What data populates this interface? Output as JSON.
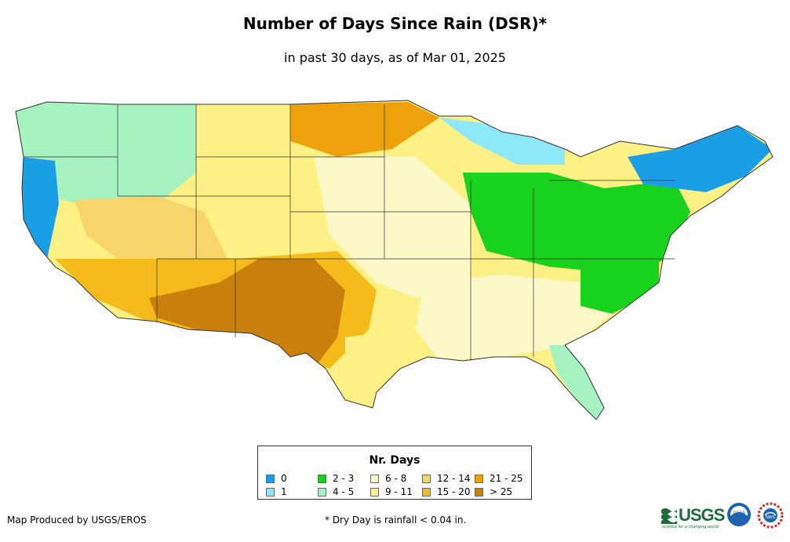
{
  "title": "Number of Days Since Rain (DSR)*",
  "subtitle": "in past 30 days, as of Mar 01, 2025",
  "legend": {
    "title": "Nr. Days",
    "items": [
      {
        "label": "0",
        "color": "#1a9fe6"
      },
      {
        "label": "1",
        "color": "#8ee8f7"
      },
      {
        "label": "2 - 3",
        "color": "#19d21b"
      },
      {
        "label": "4 - 5",
        "color": "#a6f2c0"
      },
      {
        "label": "6 - 8",
        "color": "#fcf8c8"
      },
      {
        "label": "9 - 11",
        "color": "#fdf085"
      },
      {
        "label": "12 - 14",
        "color": "#f8d56a"
      },
      {
        "label": "15 - 20",
        "color": "#f4bb1a"
      },
      {
        "label": "21 - 25",
        "color": "#eda20c"
      },
      {
        "label": "> 25",
        "color": "#c97f0c"
      }
    ]
  },
  "footer": {
    "producer": "Map Produced by USGS/EROS",
    "note": "* Dry Day is rainfall < 0.04 in."
  },
  "logos": {
    "usgs": "USGS",
    "usgs_tagline": "science for a changing world",
    "noaa": "noaa",
    "nws": "NWS"
  }
}
